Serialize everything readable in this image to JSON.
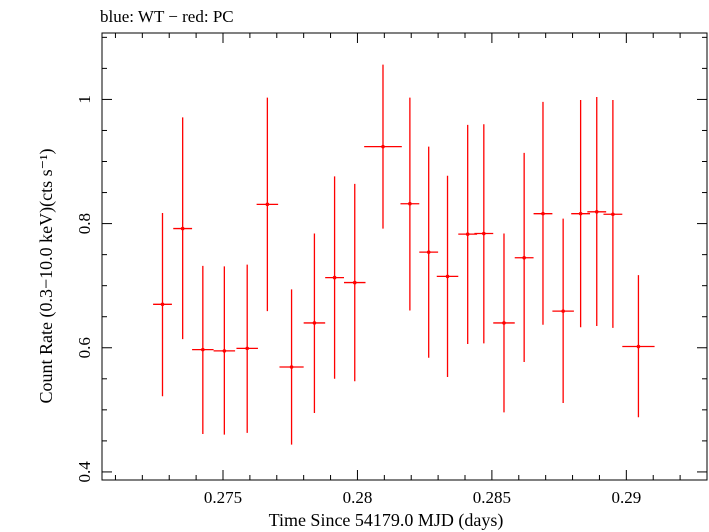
{
  "chart_data": {
    "type": "scatter",
    "title": "blue: WT − red: PC",
    "xlabel": "Time Since 54179.0 MJD (days)",
    "ylabel": "Count Rate (0.3−10.0 keV)(cts s⁻¹)",
    "xlim": [
      0.2705,
      0.293
    ],
    "ylim": [
      0.387,
      1.107
    ],
    "xticks": [
      0.275,
      0.28,
      0.285,
      0.29
    ],
    "xtick_labels": [
      "0.275",
      "0.28",
      "0.285",
      "0.29"
    ],
    "yticks": [
      0.4,
      0.6,
      0.8,
      1.0
    ],
    "ytick_labels": [
      "0.4",
      "0.6",
      "0.8",
      "1"
    ],
    "grid": false,
    "series": [
      {
        "color": "#ff0000",
        "points": [
          {
            "x": 0.27275,
            "y": 0.67,
            "xerr": 0.00035,
            "ylo": 0.522,
            "yhi": 0.817
          },
          {
            "x": 0.2735,
            "y": 0.792,
            "xerr": 0.00035,
            "ylo": 0.614,
            "yhi": 0.971
          },
          {
            "x": 0.27425,
            "y": 0.597,
            "xerr": 0.0004,
            "ylo": 0.461,
            "yhi": 0.732
          },
          {
            "x": 0.27505,
            "y": 0.595,
            "xerr": 0.0004,
            "ylo": 0.46,
            "yhi": 0.731
          },
          {
            "x": 0.2759,
            "y": 0.599,
            "xerr": 0.0004,
            "ylo": 0.463,
            "yhi": 0.734
          },
          {
            "x": 0.27665,
            "y": 0.831,
            "xerr": 0.0004,
            "ylo": 0.659,
            "yhi": 1.003
          },
          {
            "x": 0.27755,
            "y": 0.569,
            "xerr": 0.00045,
            "ylo": 0.444,
            "yhi": 0.694
          },
          {
            "x": 0.2784,
            "y": 0.64,
            "xerr": 0.0004,
            "ylo": 0.495,
            "yhi": 0.784
          },
          {
            "x": 0.27915,
            "y": 0.713,
            "xerr": 0.00035,
            "ylo": 0.55,
            "yhi": 0.876
          },
          {
            "x": 0.2799,
            "y": 0.705,
            "xerr": 0.0004,
            "ylo": 0.546,
            "yhi": 0.864
          },
          {
            "x": 0.28095,
            "y": 0.924,
            "xerr": 0.0007,
            "ylo": 0.792,
            "yhi": 1.056
          },
          {
            "x": 0.28195,
            "y": 0.832,
            "xerr": 0.00035,
            "ylo": 0.66,
            "yhi": 1.003
          },
          {
            "x": 0.28265,
            "y": 0.754,
            "xerr": 0.00035,
            "ylo": 0.584,
            "yhi": 0.924
          },
          {
            "x": 0.28335,
            "y": 0.715,
            "xerr": 0.0004,
            "ylo": 0.553,
            "yhi": 0.877
          },
          {
            "x": 0.2841,
            "y": 0.783,
            "xerr": 0.00035,
            "ylo": 0.606,
            "yhi": 0.959
          },
          {
            "x": 0.2847,
            "y": 0.784,
            "xerr": 0.00035,
            "ylo": 0.607,
            "yhi": 0.96
          },
          {
            "x": 0.28545,
            "y": 0.64,
            "xerr": 0.0004,
            "ylo": 0.496,
            "yhi": 0.784
          },
          {
            "x": 0.2862,
            "y": 0.745,
            "xerr": 0.00035,
            "ylo": 0.577,
            "yhi": 0.914
          },
          {
            "x": 0.2869,
            "y": 0.816,
            "xerr": 0.00035,
            "ylo": 0.637,
            "yhi": 0.996
          },
          {
            "x": 0.28765,
            "y": 0.659,
            "xerr": 0.0004,
            "ylo": 0.511,
            "yhi": 0.808
          },
          {
            "x": 0.2883,
            "y": 0.816,
            "xerr": 0.00035,
            "ylo": 0.633,
            "yhi": 0.999
          },
          {
            "x": 0.2889,
            "y": 0.819,
            "xerr": 0.00035,
            "ylo": 0.635,
            "yhi": 1.004
          },
          {
            "x": 0.2895,
            "y": 0.815,
            "xerr": 0.00035,
            "ylo": 0.632,
            "yhi": 0.999
          },
          {
            "x": 0.29045,
            "y": 0.602,
            "xerr": 0.0006,
            "ylo": 0.488,
            "yhi": 0.717
          }
        ]
      }
    ]
  }
}
